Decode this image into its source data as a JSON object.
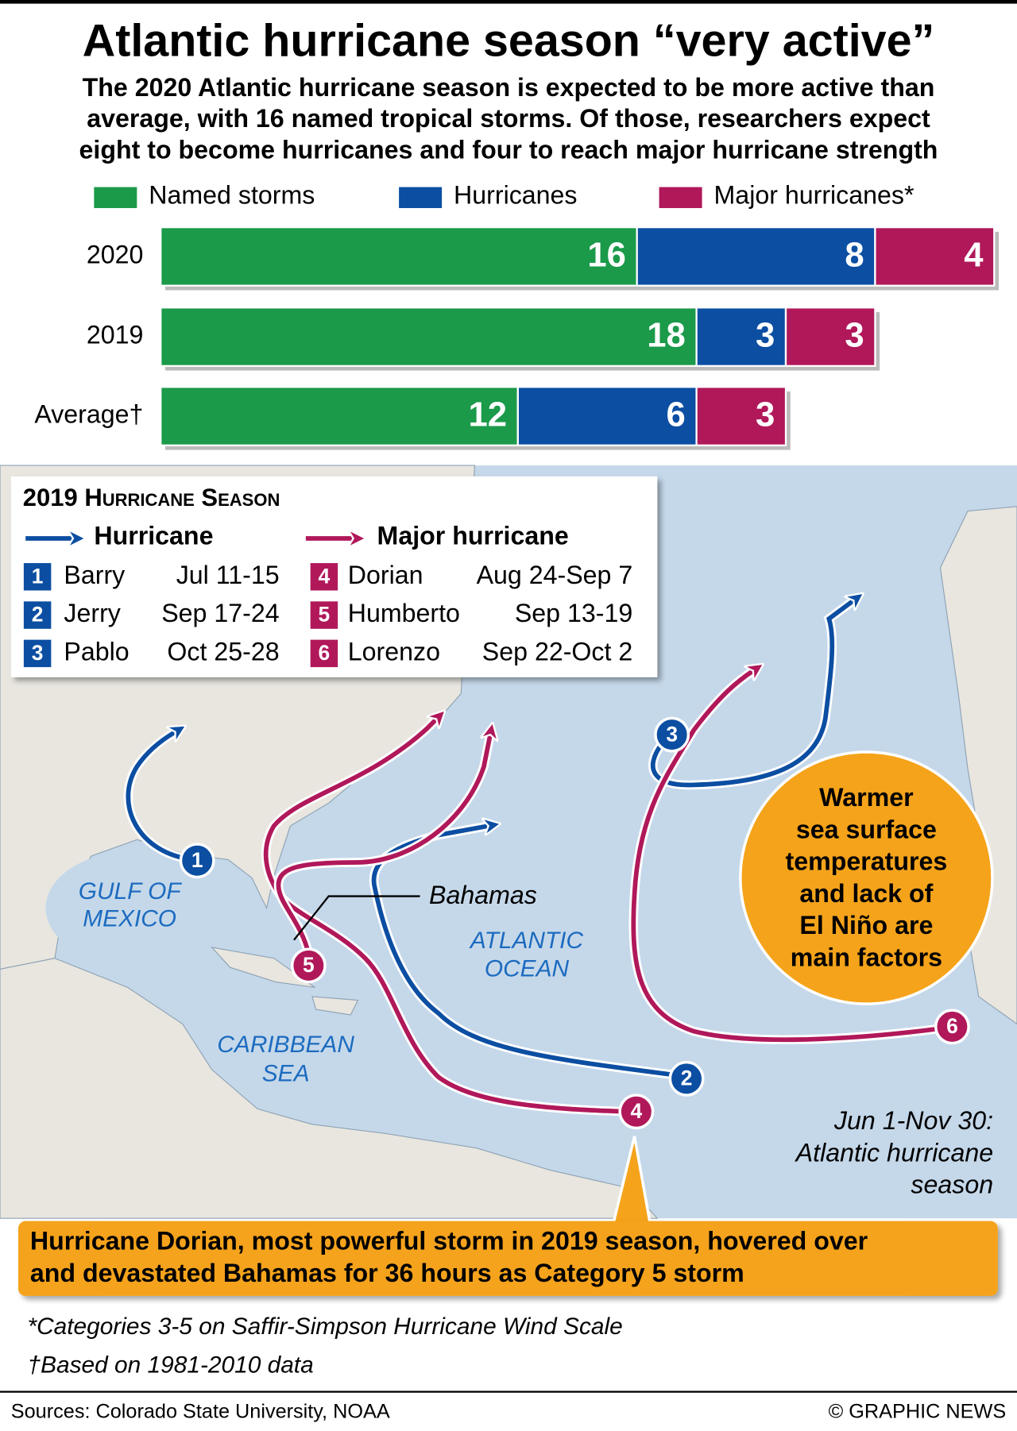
{
  "chart_data": {
    "type": "bar",
    "orientation": "horizontal",
    "stacked": true,
    "title": "Atlantic hurricane season “very active”",
    "subtitle": [
      "The 2020 Atlantic hurricane season is expected to be more active than",
      "average, with 16 named tropical storms. Of those, researchers expect",
      "eight to become hurricanes and four to reach major hurricane strength"
    ],
    "categories": [
      "2020",
      "2019",
      "Average†"
    ],
    "series": [
      {
        "name": "Named storms",
        "color": "#1b9a4a",
        "values": [
          16,
          18,
          12
        ]
      },
      {
        "name": "Hurricanes",
        "color": "#0b4ea2",
        "values": [
          8,
          3,
          6
        ]
      },
      {
        "name": "Major hurricanes*",
        "color": "#b0185a",
        "values": [
          4,
          3,
          3
        ]
      }
    ],
    "legend": "top"
  },
  "map": {
    "legend_title": "2019 Hurricane Season",
    "groups": [
      {
        "label": "Hurricane",
        "color": "#0b4ea2",
        "storms": [
          {
            "number": 1,
            "name": "Barry",
            "dates": "Jul 11-15"
          },
          {
            "number": 2,
            "name": "Jerry",
            "dates": "Sep 17-24"
          },
          {
            "number": 3,
            "name": "Pablo",
            "dates": "Oct 25-28"
          }
        ]
      },
      {
        "label": "Major hurricane",
        "color": "#b0185a",
        "storms": [
          {
            "number": 4,
            "name": "Dorian",
            "dates": "Aug 24-Sep 7"
          },
          {
            "number": 5,
            "name": "Humberto",
            "dates": "Sep 13-19"
          },
          {
            "number": 6,
            "name": "Lorenzo",
            "dates": "Sep 22-Oct 2"
          }
        ]
      }
    ],
    "places": {
      "gulf": [
        "GULF OF",
        "MEXICO"
      ],
      "ocean": [
        "ATLANTIC",
        "OCEAN"
      ],
      "caribbean": [
        "CARIBBEAN",
        "SEA"
      ],
      "bahamas": "Bahamas"
    },
    "season_note": [
      "Jun 1-Nov 30:",
      "Atlantic hurricane",
      "season"
    ],
    "factor_note": [
      "Warmer",
      "sea surface",
      "temperatures",
      "and lack of",
      "El Niño are",
      "main factors"
    ],
    "dorian_note": [
      "Hurricane Dorian, most powerful storm in 2019 season, hovered over",
      "and devastated Bahamas for 36 hours as Category 5 storm"
    ]
  },
  "footnotes": [
    "*Categories 3-5 on Saffir-Simpson Hurricane Wind Scale",
    "†Based on 1981-2010 data"
  ],
  "sources": "Sources: Colorado State University, NOAA",
  "credit": "© GRAPHIC NEWS"
}
